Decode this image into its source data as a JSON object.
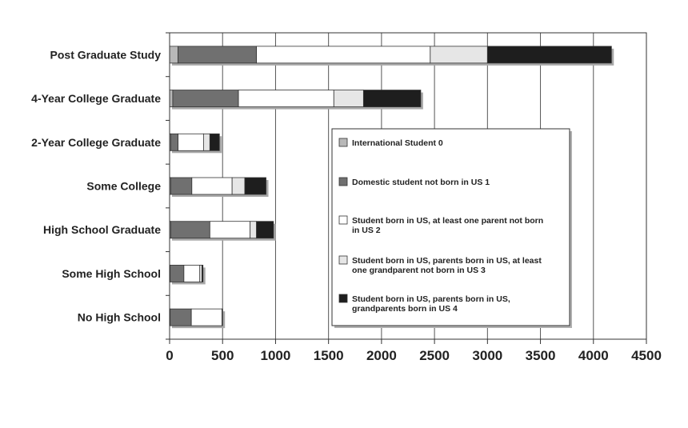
{
  "chart_data": {
    "type": "bar",
    "orientation": "horizontal",
    "stacked": true,
    "categories": [
      "Post Graduate Study",
      "4-Year College Graduate",
      "2-Year College Graduate",
      "Some College",
      "High School Graduate",
      "Some High School",
      "No High School"
    ],
    "series": [
      {
        "name": "International Student 0",
        "color": "#b8b8b8",
        "values": [
          80,
          30,
          10,
          10,
          10,
          5,
          5
        ]
      },
      {
        "name": "Domestic student not born in US 1",
        "color": "#707070",
        "values": [
          740,
          620,
          70,
          200,
          370,
          130,
          200
        ]
      },
      {
        "name": "Student born in US, at least one parent not born in US 2",
        "color": "#ffffff",
        "values": [
          1640,
          900,
          240,
          380,
          380,
          150,
          290
        ]
      },
      {
        "name": "Student born in US, parents born in US, at least one grandparent not born in US 3",
        "color": "#e6e6e6",
        "values": [
          540,
          280,
          60,
          120,
          60,
          20,
          5
        ]
      },
      {
        "name": "Student born in US, parents born in US, grandparents born in US 4",
        "color": "#1e1e1e",
        "values": [
          1170,
          540,
          90,
          200,
          160,
          10,
          0
        ]
      }
    ],
    "x_ticks": [
      0,
      500,
      1000,
      1500,
      2000,
      2500,
      3000,
      3500,
      4000,
      4500
    ],
    "xlim": [
      0,
      4500
    ],
    "grid": "vertical",
    "legend_position": "center-right",
    "title": "",
    "xlabel": "",
    "ylabel": ""
  }
}
